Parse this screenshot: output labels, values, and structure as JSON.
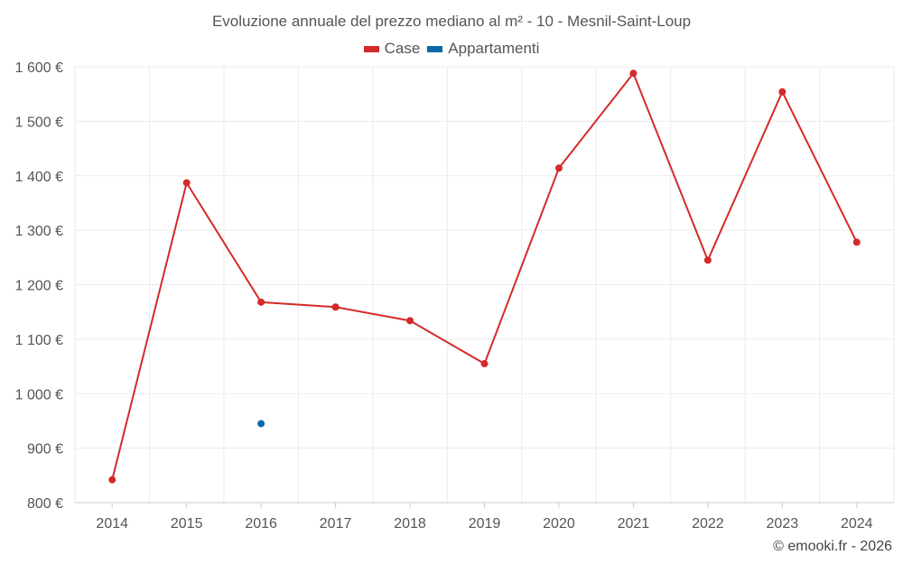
{
  "chart_data": {
    "type": "line",
    "title": "Evoluzione annuale del prezzo mediano al m² - 10 - Mesnil-Saint-Loup",
    "xlabel": "",
    "ylabel": "",
    "categories": [
      "2014",
      "2015",
      "2016",
      "2017",
      "2018",
      "2019",
      "2020",
      "2021",
      "2022",
      "2023",
      "2024"
    ],
    "ylim": [
      800,
      1600
    ],
    "yticks": [
      800,
      900,
      1000,
      1100,
      1200,
      1300,
      1400,
      1500,
      1600
    ],
    "ytick_labels": [
      "800 €",
      "900 €",
      "1 000 €",
      "1 100 €",
      "1 200 €",
      "1 300 €",
      "1 400 €",
      "1 500 €",
      "1 600 €"
    ],
    "grid": true,
    "legend_position": "top-center",
    "series": [
      {
        "name": "Case",
        "color": "#d42a2a",
        "values": [
          842,
          1387,
          1168,
          1159,
          1134,
          1055,
          1414,
          1588,
          1245,
          1554,
          1278
        ]
      },
      {
        "name": "Appartamenti",
        "color": "#0b6aa6",
        "values": [
          null,
          null,
          945,
          null,
          null,
          null,
          null,
          null,
          null,
          null,
          null
        ]
      }
    ]
  },
  "footer": {
    "credit": "© emooki.fr - 2026"
  }
}
